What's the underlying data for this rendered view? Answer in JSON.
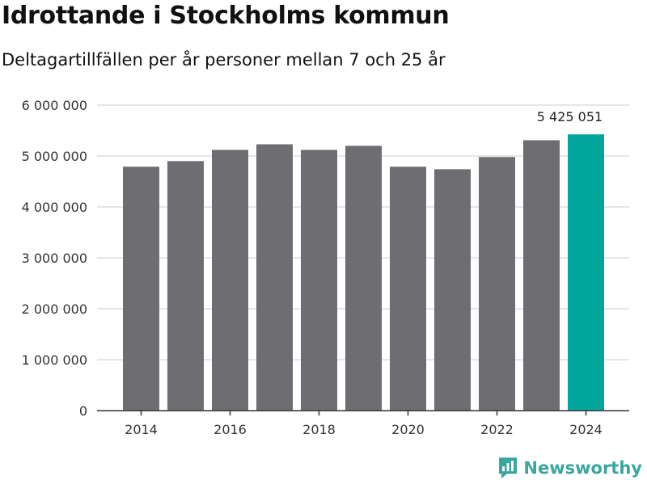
{
  "chart_data": {
    "type": "bar",
    "title": "Idrottande i Stockholms kommun",
    "subtitle": "Deltagartillfällen per år personer mellan 7 och 25 år",
    "categories": [
      "2014",
      "2015",
      "2016",
      "2017",
      "2018",
      "2019",
      "2020",
      "2021",
      "2022",
      "2023",
      "2024"
    ],
    "values": [
      4790000,
      4900000,
      5120000,
      5230000,
      5120000,
      5200000,
      4790000,
      4740000,
      4980000,
      5310000,
      5425051
    ],
    "x_tick_labels": [
      "2014",
      "2016",
      "2018",
      "2020",
      "2022",
      "2024"
    ],
    "y_ticks": [
      0,
      1000000,
      2000000,
      3000000,
      4000000,
      5000000,
      6000000
    ],
    "y_tick_labels": [
      "0",
      "1 000 000",
      "2 000 000",
      "3 000 000",
      "4 000 000",
      "5 000 000",
      "6 000 000"
    ],
    "ylim": [
      0,
      6000000
    ],
    "highlight_index": 10,
    "highlight_label": "5 425 051",
    "colors": {
      "bar": "#6d6d72",
      "highlight": "#00a69c",
      "grid": "#dddddd",
      "axis": "#333333"
    },
    "grid": true,
    "xlabel": "",
    "ylabel": ""
  },
  "brand": {
    "name": "Newsworthy",
    "icon": "newsworthy-logo-icon",
    "color": "#3aa6a0"
  }
}
